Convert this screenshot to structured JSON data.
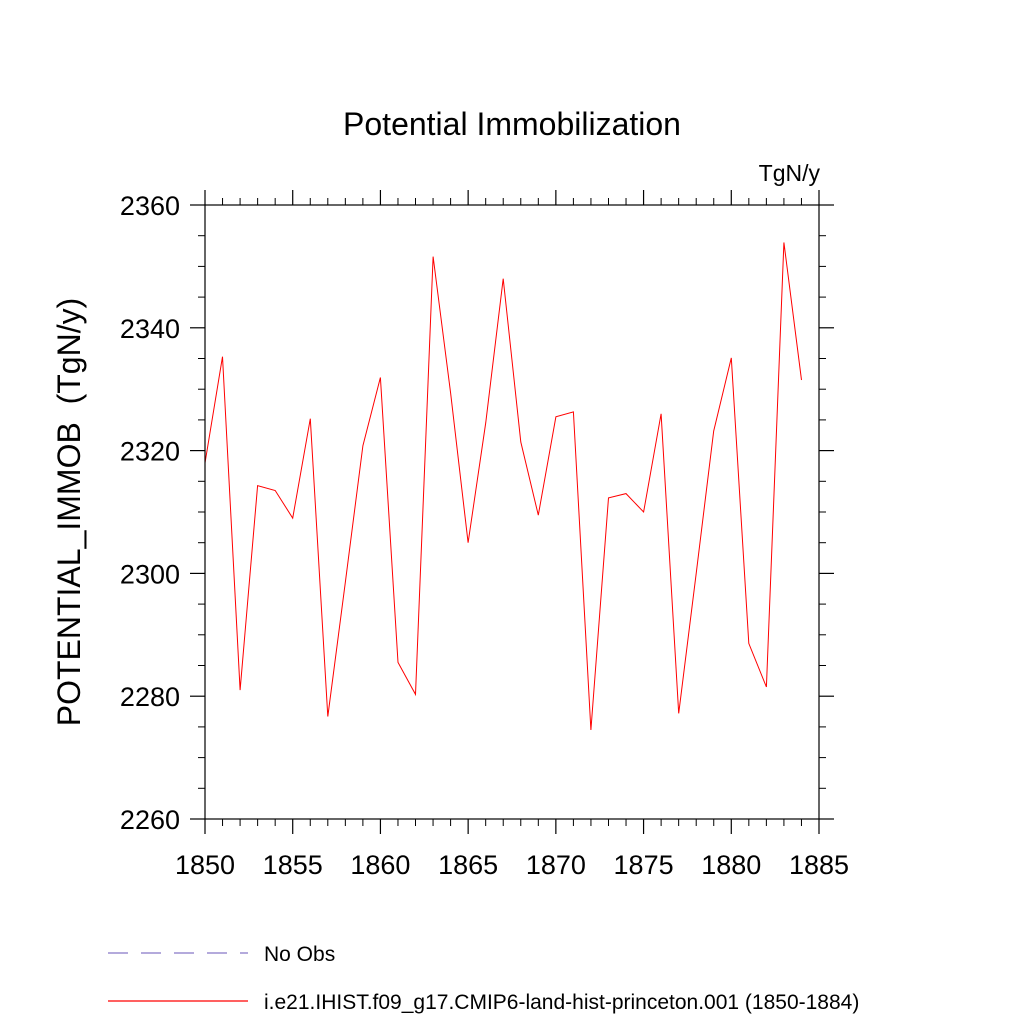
{
  "chart_data": {
    "type": "line",
    "title": "Potential Immobilization",
    "units_label": "TgN/y",
    "ylabel": "POTENTIAL_IMMOB  (TgN/y)",
    "xlabel": "",
    "xlim": [
      1850,
      1885
    ],
    "ylim": [
      2260,
      2360
    ],
    "xticks": [
      1850,
      1855,
      1860,
      1865,
      1870,
      1875,
      1880,
      1885
    ],
    "yticks": [
      2260,
      2280,
      2300,
      2320,
      2340,
      2360
    ],
    "x_minor_step": 1,
    "y_minor_step": 5,
    "grid": false,
    "legend_position": "bottom",
    "series": [
      {
        "name": "i.e21.IHIST.f09_g17.CMIP6-land-hist-princeton.001 (1850-1884)",
        "color": "#ff0000",
        "style": "solid",
        "x": [
          1850,
          1851,
          1852,
          1853,
          1854,
          1855,
          1856,
          1857,
          1858,
          1859,
          1860,
          1861,
          1862,
          1863,
          1864,
          1865,
          1866,
          1867,
          1868,
          1869,
          1870,
          1871,
          1872,
          1873,
          1874,
          1875,
          1876,
          1877,
          1878,
          1879,
          1880,
          1881,
          1882,
          1883,
          1884
        ],
        "y": [
          2318,
          2335.3,
          2281,
          2314.3,
          2313.5,
          2309,
          2325.2,
          2276.7,
          2298.5,
          2320.8,
          2331.9,
          2285.5,
          2280.3,
          2351.6,
          2329.4,
          2305,
          2324.5,
          2348,
          2321.4,
          2309.5,
          2325.5,
          2326.3,
          2274.5,
          2312.3,
          2313,
          2310,
          2326,
          2277.2,
          2300,
          2323.2,
          2335.1,
          2288.6,
          2281.5,
          2353.9,
          2331.5
        ]
      }
    ],
    "legend": [
      {
        "label": "No Obs",
        "color": "#8878c8",
        "style": "dashed"
      },
      {
        "label": "i.e21.IHIST.f09_g17.CMIP6-land-hist-princeton.001 (1850-1884)",
        "color": "#ff0000",
        "style": "solid"
      }
    ]
  }
}
